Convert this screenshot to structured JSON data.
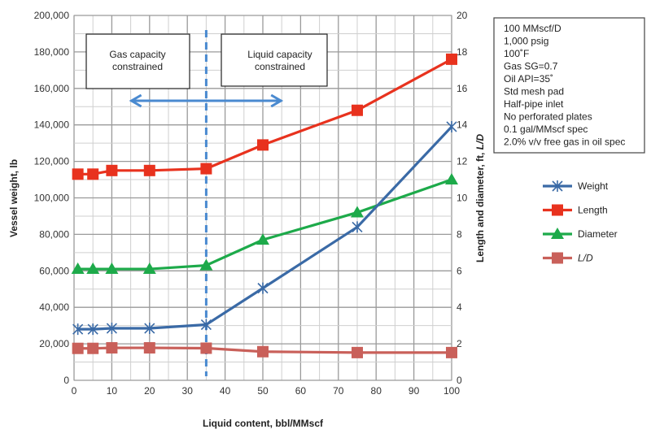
{
  "chart_data": {
    "type": "line",
    "title": "",
    "xlabel": "Liquid content, bbl/MMscf",
    "ylabel": "Vessel weight, lb",
    "y2label_prefix": "Length and diameter, ft, ",
    "y2label_italic": "L/D",
    "xlim": [
      0,
      100
    ],
    "ylim": [
      0,
      200000
    ],
    "y2lim": [
      0,
      20
    ],
    "grid": true,
    "legend_position": "right",
    "x_ticks": [
      "0",
      "10",
      "20",
      "30",
      "40",
      "50",
      "60",
      "70",
      "80",
      "90",
      "100"
    ],
    "y_ticks": [
      "0",
      "20,000",
      "40,000",
      "60,000",
      "80,000",
      "100,000",
      "120,000",
      "140,000",
      "160,000",
      "180,000",
      "200,000"
    ],
    "y2_ticks": [
      "0",
      "2",
      "4",
      "6",
      "8",
      "10",
      "12",
      "14",
      "16",
      "18",
      "20"
    ],
    "x": [
      1,
      5,
      10,
      20,
      35,
      50,
      75,
      100
    ],
    "series": [
      {
        "name": "Weight",
        "axis": "left",
        "color": "#3a6aa6",
        "marker": "x",
        "values": [
          28000,
          28000,
          28500,
          28500,
          30500,
          50500,
          84000,
          139000
        ]
      },
      {
        "name": "Length",
        "axis": "right",
        "color": "#e8321e",
        "marker": "square",
        "values": [
          11.3,
          11.3,
          11.5,
          11.5,
          11.6,
          12.9,
          14.8,
          17.6
        ]
      },
      {
        "name": "Diameter",
        "axis": "right",
        "color": "#1daa4a",
        "marker": "triangle",
        "values": [
          6.1,
          6.1,
          6.1,
          6.1,
          6.3,
          7.7,
          9.2,
          11.0
        ]
      },
      {
        "name": "L/D",
        "axis": "right",
        "color": "#c9605a",
        "marker": "square",
        "italic": true,
        "values": [
          1.75,
          1.75,
          1.78,
          1.78,
          1.76,
          1.57,
          1.52,
          1.52
        ]
      }
    ],
    "annotations": {
      "gas_box": [
        "Gas capacity",
        "constrained"
      ],
      "liquid_box": [
        "Liquid capacity",
        "constrained"
      ],
      "divider_x": 35,
      "arrow_range": [
        15,
        55
      ],
      "divider_color": "#4a8ad0"
    },
    "conditions": [
      "100 MMscf/D",
      "1,000 psig",
      "100˚F",
      "Gas SG=0.7",
      "Oil API=35˚",
      "Std mesh pad",
      "Half-pipe inlet",
      "No perforated plates",
      "0.1 gal/MMscf spec",
      "2.0% v/v free gas in oil spec"
    ]
  }
}
